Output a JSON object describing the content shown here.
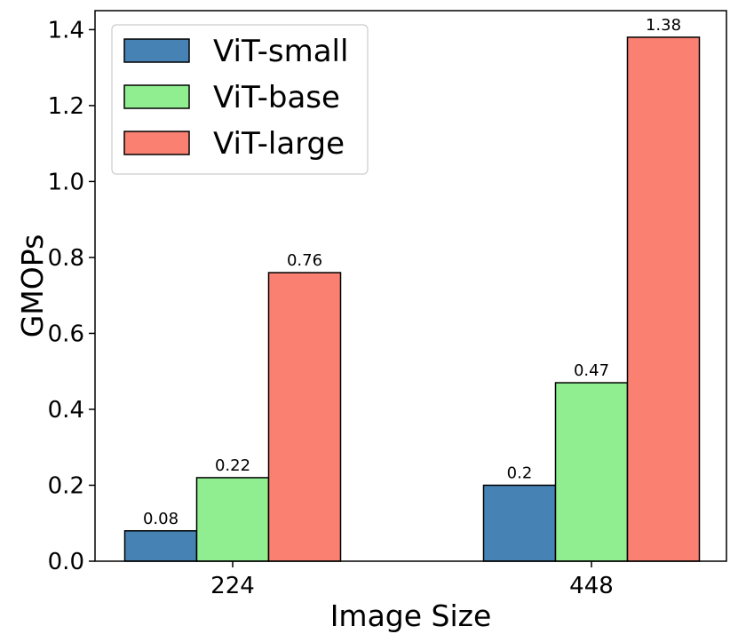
{
  "chart_data": {
    "type": "bar",
    "title": "",
    "xlabel": "Image Size",
    "ylabel": "GMOPs",
    "categories": [
      "224",
      "448"
    ],
    "series": [
      {
        "name": "ViT-small",
        "color": "#4682B4",
        "values": [
          0.08,
          0.2
        ],
        "labels": [
          "0.08",
          "0.2"
        ]
      },
      {
        "name": "ViT-base",
        "color": "#90EE90",
        "values": [
          0.22,
          0.47
        ],
        "labels": [
          "0.22",
          "0.47"
        ]
      },
      {
        "name": "ViT-large",
        "color": "#FA8072",
        "values": [
          0.76,
          1.38
        ],
        "labels": [
          "0.76",
          "1.38"
        ]
      }
    ],
    "ylim": [
      0,
      1.45
    ],
    "yticks": [
      0.0,
      0.2,
      0.4,
      0.6,
      0.8,
      1.0,
      1.2,
      1.4
    ],
    "ytick_labels": [
      "0.0",
      "0.2",
      "0.4",
      "0.6",
      "0.8",
      "1.0",
      "1.2",
      "1.4"
    ],
    "grid": false,
    "legend_position": "top-left"
  }
}
